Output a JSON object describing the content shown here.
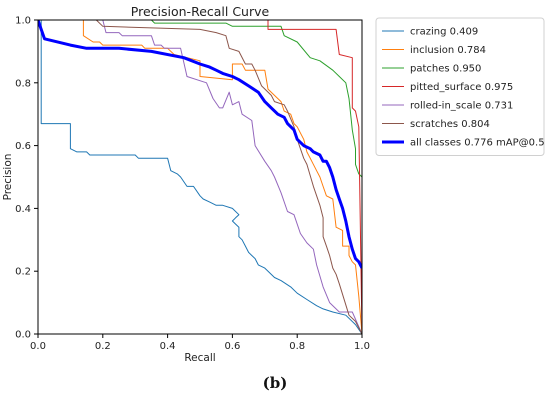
{
  "caption": "(b)",
  "chart_data": {
    "type": "line",
    "title": "Precision-Recall Curve",
    "xlabel": "Recall",
    "ylabel": "Precision",
    "xlim": [
      0,
      1
    ],
    "ylim": [
      0,
      1
    ],
    "xticks": [
      "0.0",
      "0.2",
      "0.4",
      "0.6",
      "0.8",
      "1.0"
    ],
    "yticks": [
      "0.0",
      "0.2",
      "0.4",
      "0.6",
      "0.8",
      "1.0"
    ],
    "grid": false,
    "legend_position": "upper-right-outside",
    "series": [
      {
        "name": "crazing 0.409",
        "color": "#1f77b4",
        "width": 1,
        "points": [
          [
            0,
            1.0
          ],
          [
            0.01,
            1.0
          ],
          [
            0.01,
            0.67
          ],
          [
            0.1,
            0.67
          ],
          [
            0.1,
            0.59
          ],
          [
            0.12,
            0.58
          ],
          [
            0.15,
            0.58
          ],
          [
            0.16,
            0.57
          ],
          [
            0.25,
            0.57
          ],
          [
            0.27,
            0.57
          ],
          [
            0.3,
            0.57
          ],
          [
            0.31,
            0.56
          ],
          [
            0.4,
            0.56
          ],
          [
            0.41,
            0.52
          ],
          [
            0.43,
            0.51
          ],
          [
            0.44,
            0.5
          ],
          [
            0.46,
            0.47
          ],
          [
            0.48,
            0.47
          ],
          [
            0.5,
            0.44
          ],
          [
            0.51,
            0.43
          ],
          [
            0.53,
            0.42
          ],
          [
            0.55,
            0.41
          ],
          [
            0.57,
            0.41
          ],
          [
            0.6,
            0.4
          ],
          [
            0.62,
            0.38
          ],
          [
            0.61,
            0.37
          ],
          [
            0.6,
            0.36
          ],
          [
            0.61,
            0.35
          ],
          [
            0.62,
            0.34
          ],
          [
            0.62,
            0.31
          ],
          [
            0.63,
            0.3
          ],
          [
            0.64,
            0.28
          ],
          [
            0.65,
            0.26
          ],
          [
            0.66,
            0.25
          ],
          [
            0.67,
            0.24
          ],
          [
            0.68,
            0.22
          ],
          [
            0.7,
            0.21
          ],
          [
            0.73,
            0.18
          ],
          [
            0.75,
            0.17
          ],
          [
            0.78,
            0.15
          ],
          [
            0.8,
            0.13
          ],
          [
            0.83,
            0.11
          ],
          [
            0.86,
            0.09
          ],
          [
            0.88,
            0.08
          ],
          [
            0.91,
            0.07
          ],
          [
            0.95,
            0.06
          ],
          [
            0.98,
            0.03
          ],
          [
            1.0,
            0.0
          ]
        ]
      },
      {
        "name": "inclusion 0.784",
        "color": "#ff7f0e",
        "width": 1,
        "points": [
          [
            0.14,
            1.0
          ],
          [
            0.14,
            0.95
          ],
          [
            0.17,
            0.93
          ],
          [
            0.19,
            0.93
          ],
          [
            0.2,
            0.92
          ],
          [
            0.32,
            0.92
          ],
          [
            0.33,
            0.91
          ],
          [
            0.4,
            0.91
          ],
          [
            0.42,
            0.89
          ],
          [
            0.5,
            0.87
          ],
          [
            0.5,
            0.82
          ],
          [
            0.6,
            0.81
          ],
          [
            0.6,
            0.86
          ],
          [
            0.63,
            0.86
          ],
          [
            0.64,
            0.84
          ],
          [
            0.7,
            0.84
          ],
          [
            0.71,
            0.78
          ],
          [
            0.75,
            0.74
          ],
          [
            0.76,
            0.71
          ],
          [
            0.78,
            0.7
          ],
          [
            0.79,
            0.67
          ],
          [
            0.8,
            0.66
          ],
          [
            0.82,
            0.62
          ],
          [
            0.83,
            0.58
          ],
          [
            0.84,
            0.56
          ],
          [
            0.86,
            0.52
          ],
          [
            0.87,
            0.5
          ],
          [
            0.88,
            0.47
          ],
          [
            0.89,
            0.44
          ],
          [
            0.91,
            0.43
          ],
          [
            0.92,
            0.34
          ],
          [
            0.94,
            0.33
          ],
          [
            0.94,
            0.28
          ],
          [
            0.96,
            0.28
          ],
          [
            0.96,
            0.25
          ],
          [
            0.97,
            0.23
          ],
          [
            0.98,
            0.22
          ],
          [
            0.99,
            0.12
          ],
          [
            1.0,
            0.0
          ]
        ]
      },
      {
        "name": "patches 0.950",
        "color": "#2ca02c",
        "width": 1,
        "points": [
          [
            0.35,
            1.0
          ],
          [
            0.36,
            0.99
          ],
          [
            0.58,
            0.99
          ],
          [
            0.6,
            0.98
          ],
          [
            0.75,
            0.98
          ],
          [
            0.76,
            0.95
          ],
          [
            0.8,
            0.93
          ],
          [
            0.84,
            0.88
          ],
          [
            0.87,
            0.87
          ],
          [
            0.91,
            0.84
          ],
          [
            0.93,
            0.82
          ],
          [
            0.95,
            0.8
          ],
          [
            0.96,
            0.75
          ],
          [
            0.97,
            0.65
          ],
          [
            0.98,
            0.59
          ],
          [
            0.98,
            0.54
          ],
          [
            0.99,
            0.51
          ],
          [
            1.0,
            0.5
          ],
          [
            1.0,
            0.0
          ]
        ]
      },
      {
        "name": "pitted_surface 0.975",
        "color": "#d62728",
        "width": 1,
        "points": [
          [
            0.71,
            1.0
          ],
          [
            0.71,
            0.97
          ],
          [
            0.92,
            0.97
          ],
          [
            0.93,
            0.89
          ],
          [
            0.97,
            0.88
          ],
          [
            0.97,
            0.72
          ],
          [
            0.98,
            0.71
          ],
          [
            0.99,
            0.66
          ],
          [
            1.0,
            0.0
          ]
        ]
      },
      {
        "name": "rolled-in_scale 0.731",
        "color": "#9467bd",
        "width": 1,
        "points": [
          [
            0.2,
            1.0
          ],
          [
            0.21,
            0.96
          ],
          [
            0.25,
            0.96
          ],
          [
            0.26,
            0.95
          ],
          [
            0.35,
            0.95
          ],
          [
            0.36,
            0.92
          ],
          [
            0.38,
            0.92
          ],
          [
            0.39,
            0.91
          ],
          [
            0.44,
            0.91
          ],
          [
            0.46,
            0.82
          ],
          [
            0.52,
            0.8
          ],
          [
            0.54,
            0.75
          ],
          [
            0.56,
            0.72
          ],
          [
            0.57,
            0.72
          ],
          [
            0.59,
            0.77
          ],
          [
            0.6,
            0.73
          ],
          [
            0.62,
            0.74
          ],
          [
            0.63,
            0.7
          ],
          [
            0.66,
            0.68
          ],
          [
            0.67,
            0.6
          ],
          [
            0.7,
            0.55
          ],
          [
            0.72,
            0.52
          ],
          [
            0.73,
            0.5
          ],
          [
            0.75,
            0.45
          ],
          [
            0.77,
            0.39
          ],
          [
            0.79,
            0.38
          ],
          [
            0.81,
            0.32
          ],
          [
            0.83,
            0.29
          ],
          [
            0.85,
            0.27
          ],
          [
            0.86,
            0.22
          ],
          [
            0.88,
            0.15
          ],
          [
            0.9,
            0.1
          ],
          [
            0.93,
            0.07
          ],
          [
            0.97,
            0.07
          ],
          [
            1.0,
            0.0
          ]
        ]
      },
      {
        "name": "scratches 0.804",
        "color": "#8c564b",
        "width": 1,
        "points": [
          [
            0.18,
            1.0
          ],
          [
            0.2,
            0.98
          ],
          [
            0.5,
            0.97
          ],
          [
            0.55,
            0.96
          ],
          [
            0.58,
            0.95
          ],
          [
            0.59,
            0.91
          ],
          [
            0.62,
            0.9
          ],
          [
            0.64,
            0.86
          ],
          [
            0.66,
            0.86
          ],
          [
            0.67,
            0.84
          ],
          [
            0.69,
            0.79
          ],
          [
            0.72,
            0.76
          ],
          [
            0.73,
            0.74
          ],
          [
            0.76,
            0.73
          ],
          [
            0.77,
            0.71
          ],
          [
            0.79,
            0.66
          ],
          [
            0.8,
            0.62
          ],
          [
            0.82,
            0.56
          ],
          [
            0.83,
            0.54
          ],
          [
            0.85,
            0.47
          ],
          [
            0.87,
            0.41
          ],
          [
            0.88,
            0.37
          ],
          [
            0.88,
            0.31
          ],
          [
            0.89,
            0.28
          ],
          [
            0.9,
            0.25
          ],
          [
            0.91,
            0.21
          ],
          [
            0.92,
            0.19
          ],
          [
            0.93,
            0.16
          ],
          [
            0.96,
            0.06
          ],
          [
            0.98,
            0.04
          ],
          [
            1.0,
            0.0
          ]
        ]
      },
      {
        "name": "all classes 0.776 mAP@0.5",
        "color": "#0000ff",
        "width": 3,
        "points": [
          [
            0,
            1.0
          ],
          [
            0.01,
            0.97
          ],
          [
            0.02,
            0.94
          ],
          [
            0.1,
            0.92
          ],
          [
            0.15,
            0.91
          ],
          [
            0.25,
            0.91
          ],
          [
            0.35,
            0.9
          ],
          [
            0.45,
            0.88
          ],
          [
            0.5,
            0.86
          ],
          [
            0.53,
            0.85
          ],
          [
            0.55,
            0.84
          ],
          [
            0.57,
            0.83
          ],
          [
            0.6,
            0.82
          ],
          [
            0.62,
            0.81
          ],
          [
            0.65,
            0.79
          ],
          [
            0.68,
            0.77
          ],
          [
            0.7,
            0.74
          ],
          [
            0.72,
            0.72
          ],
          [
            0.74,
            0.7
          ],
          [
            0.76,
            0.69
          ],
          [
            0.77,
            0.67
          ],
          [
            0.79,
            0.65
          ],
          [
            0.8,
            0.62
          ],
          [
            0.82,
            0.6
          ],
          [
            0.84,
            0.59
          ],
          [
            0.85,
            0.58
          ],
          [
            0.87,
            0.57
          ],
          [
            0.88,
            0.55
          ],
          [
            0.89,
            0.55
          ],
          [
            0.9,
            0.53
          ],
          [
            0.91,
            0.5
          ],
          [
            0.92,
            0.46
          ],
          [
            0.93,
            0.43
          ],
          [
            0.94,
            0.4
          ],
          [
            0.95,
            0.36
          ],
          [
            0.96,
            0.31
          ],
          [
            0.97,
            0.27
          ],
          [
            0.98,
            0.24
          ],
          [
            0.99,
            0.23
          ],
          [
            1.0,
            0.21
          ]
        ]
      }
    ]
  }
}
